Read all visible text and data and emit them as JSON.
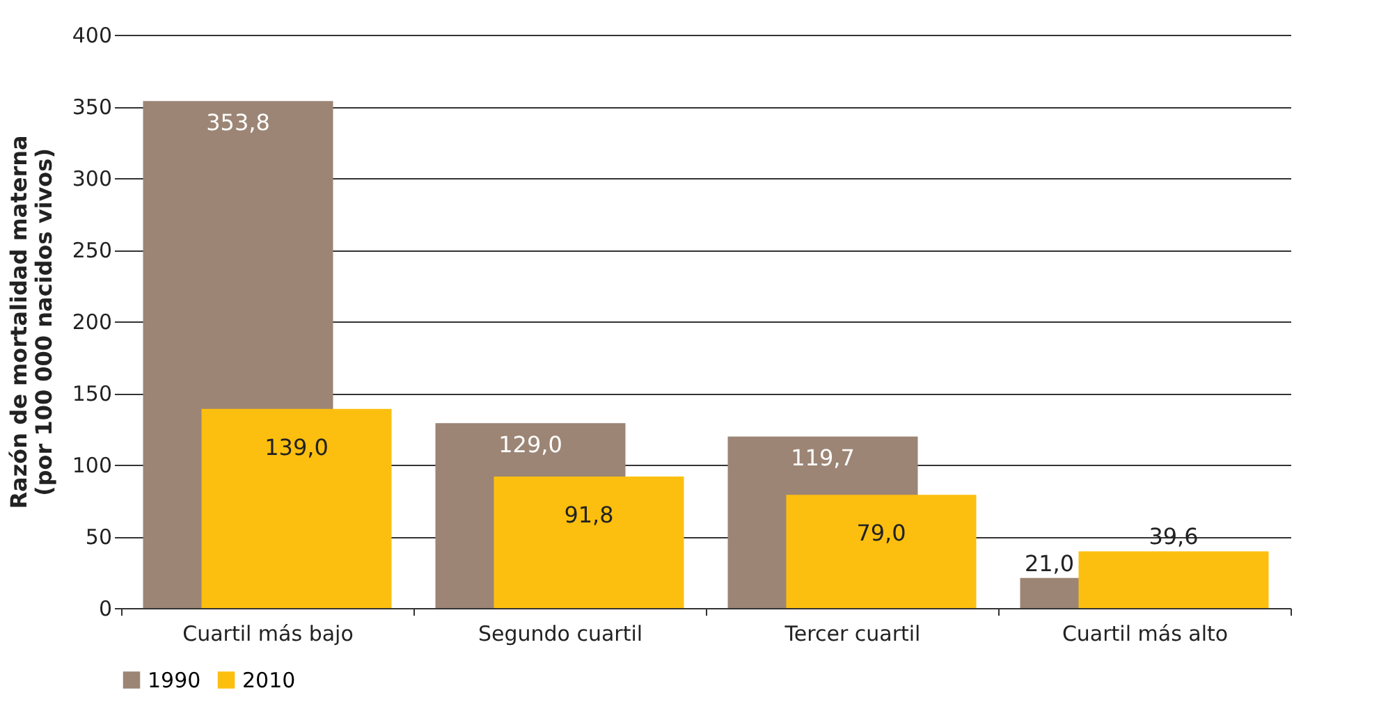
{
  "chart_data": {
    "type": "bar",
    "ylabel": "Razón de mortalidad materna\n(por 100 000 nacidos vivos)",
    "categories": [
      "Cuartil más bajo",
      "Segundo cuartil",
      "Tercer cuartil",
      "Cuartil más alto"
    ],
    "series": [
      {
        "name": "1990",
        "color": "#9c8575",
        "values": [
          353.8,
          129.0,
          119.7,
          21.0
        ],
        "value_labels": [
          "353,8",
          "129,0",
          "119,7",
          "21,0"
        ]
      },
      {
        "name": "2010",
        "color": "#fdbf0f",
        "values": [
          139.0,
          91.8,
          79.0,
          39.6
        ],
        "value_labels": [
          "139,0",
          "91,8",
          "79,0",
          "39,6"
        ]
      }
    ],
    "ylim": [
      0,
      400
    ],
    "yticks": [
      0,
      50,
      100,
      150,
      200,
      250,
      300,
      350,
      400
    ],
    "grid": "y",
    "legend": "bottom"
  }
}
